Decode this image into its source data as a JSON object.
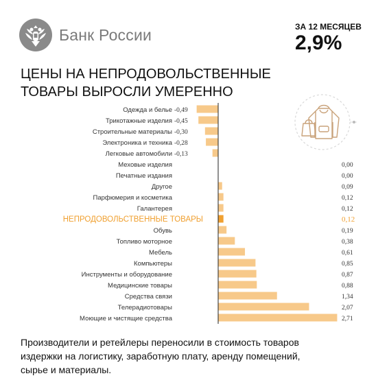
{
  "brand": {
    "name": "Банк России",
    "emblem_icon": "double-headed-eagle-icon"
  },
  "period": {
    "label": "ЗА 12 МЕСЯЦЕВ",
    "value": "2,9%"
  },
  "headline": {
    "line1": "ЦЕНЫ НА НЕПРОДОВОЛЬСТВЕННЫЕ",
    "line2": "ТОВАРЫ ВЫРОСЛИ УМЕРЕННО"
  },
  "illustration": {
    "icon": "clothing-bag-hoodie-icon"
  },
  "colors": {
    "bar": "#f7c98a",
    "highlight_bar": "#f0a030",
    "highlight_text": "#f0a030",
    "axis": "#222222",
    "label": "#333333"
  },
  "chart_data": {
    "type": "bar",
    "orientation": "horizontal",
    "categories": [
      "Одежда и белье",
      "Трикотажные изделия",
      "Строительные материалы",
      "Электроника и техника",
      "Легковые автомобили",
      "Меховые изделия",
      "Печатные издания",
      "Другое",
      "Парфюмерия и косметика",
      "Галантерея",
      "НЕПРОДОВОЛЬСТВЕННЫЕ ТОВАРЫ",
      "Обувь",
      "Топливо моторное",
      "Мебель",
      "Компьютеры",
      "Инструменты и оборудование",
      "Медицинские товары",
      "Средства связи",
      "Телерадиотовары",
      "Моющие и чистящие средства"
    ],
    "values": [
      -0.49,
      -0.45,
      -0.3,
      -0.28,
      -0.13,
      0.0,
      0.0,
      0.09,
      0.12,
      0.12,
      0.12,
      0.19,
      0.38,
      0.61,
      0.85,
      0.87,
      0.88,
      1.34,
      2.07,
      2.71
    ],
    "value_labels": [
      "-0,49",
      "-0,45",
      "-0,30",
      "-0,28",
      "-0,13",
      "0,00",
      "0,00",
      "0,09",
      "0,12",
      "0,12",
      "0,12",
      "0,19",
      "0,38",
      "0,61",
      "0,85",
      "0,87",
      "0,88",
      "1,34",
      "2,07",
      "2,71"
    ],
    "highlight_index": 10,
    "title": "",
    "xlabel": "",
    "ylabel": "",
    "xlim": [
      -0.49,
      2.71
    ],
    "grid": false,
    "legend": "none"
  },
  "footer": {
    "line1": "Производители  и ретейлеры  переносили  в стоимость  товаров",
    "line2": "издержки  на логистику,  заработную  плату,  аренду помещений,",
    "line3": "сырье и материалы."
  }
}
